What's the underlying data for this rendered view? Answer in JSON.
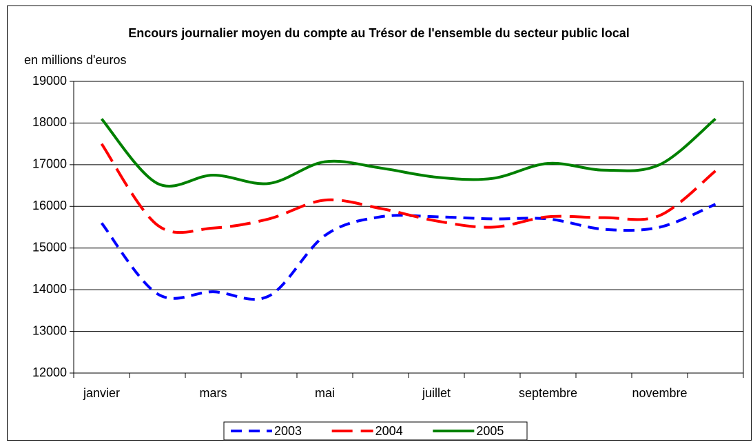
{
  "chart_data": {
    "type": "line",
    "title": "Encours journalier moyen du compte au Trésor de l'ensemble du secteur public local",
    "y_axis_label": "en millions d'euros",
    "categories": [
      "janvier",
      null,
      "mars",
      null,
      "mai",
      null,
      "juillet",
      null,
      "septembre",
      null,
      "novembre",
      null
    ],
    "series": [
      {
        "name": "2003",
        "color": "#0000ff",
        "dash": "16,10",
        "values": [
          15600,
          13900,
          13950,
          13850,
          15300,
          15750,
          15750,
          15700,
          15700,
          15450,
          15500,
          16050
        ]
      },
      {
        "name": "2004",
        "color": "#ff0000",
        "dash": "30,12",
        "values": [
          17500,
          15550,
          15480,
          15700,
          16150,
          15950,
          15650,
          15500,
          15750,
          15730,
          15780,
          16850
        ]
      },
      {
        "name": "2005",
        "color": "#008000",
        "dash": null,
        "values": [
          18100,
          16550,
          16750,
          16550,
          17070,
          16920,
          16700,
          16670,
          17030,
          16870,
          17000,
          18100
        ]
      }
    ],
    "ylim": [
      12000,
      19000
    ],
    "yticks": [
      12000,
      13000,
      14000,
      15000,
      16000,
      17000,
      18000,
      19000
    ],
    "grid": true,
    "legend": "bottom"
  }
}
